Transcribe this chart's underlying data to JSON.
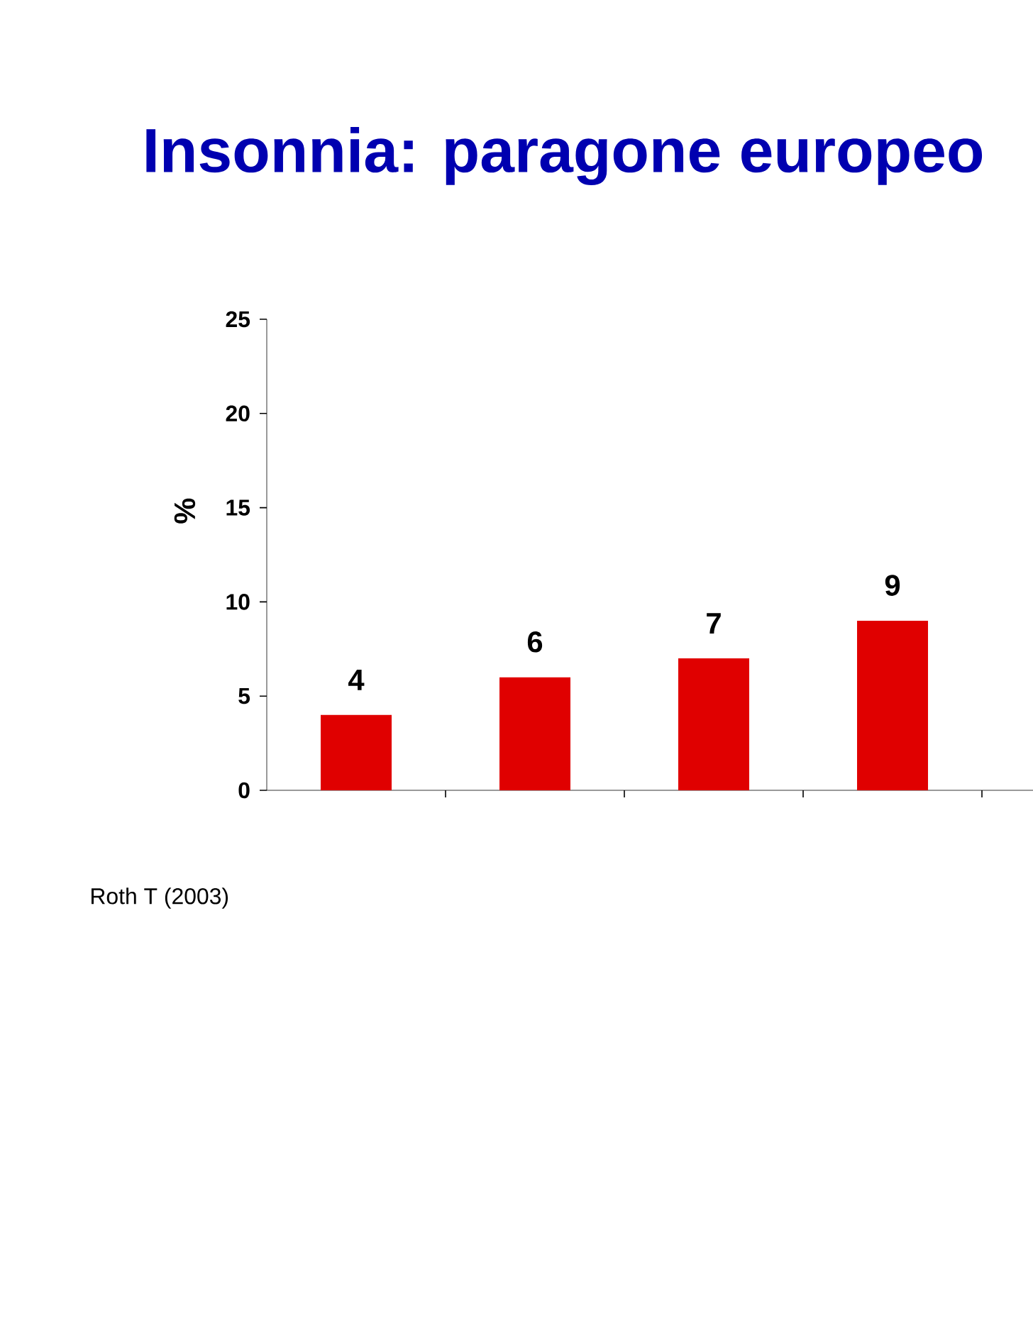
{
  "chart_data": {
    "type": "bar",
    "title": "Insonnia: paragone europeo",
    "ylabel": "%",
    "categories": [
      null,
      null,
      null,
      null
    ],
    "values": [
      4,
      6,
      7,
      9
    ],
    "color": "#e00000",
    "ylim": [
      0,
      25
    ],
    "yticks": [
      0,
      5,
      10,
      15,
      20,
      25
    ],
    "data_labels": true,
    "annotations": [
      "Roth T (2003)"
    ]
  }
}
